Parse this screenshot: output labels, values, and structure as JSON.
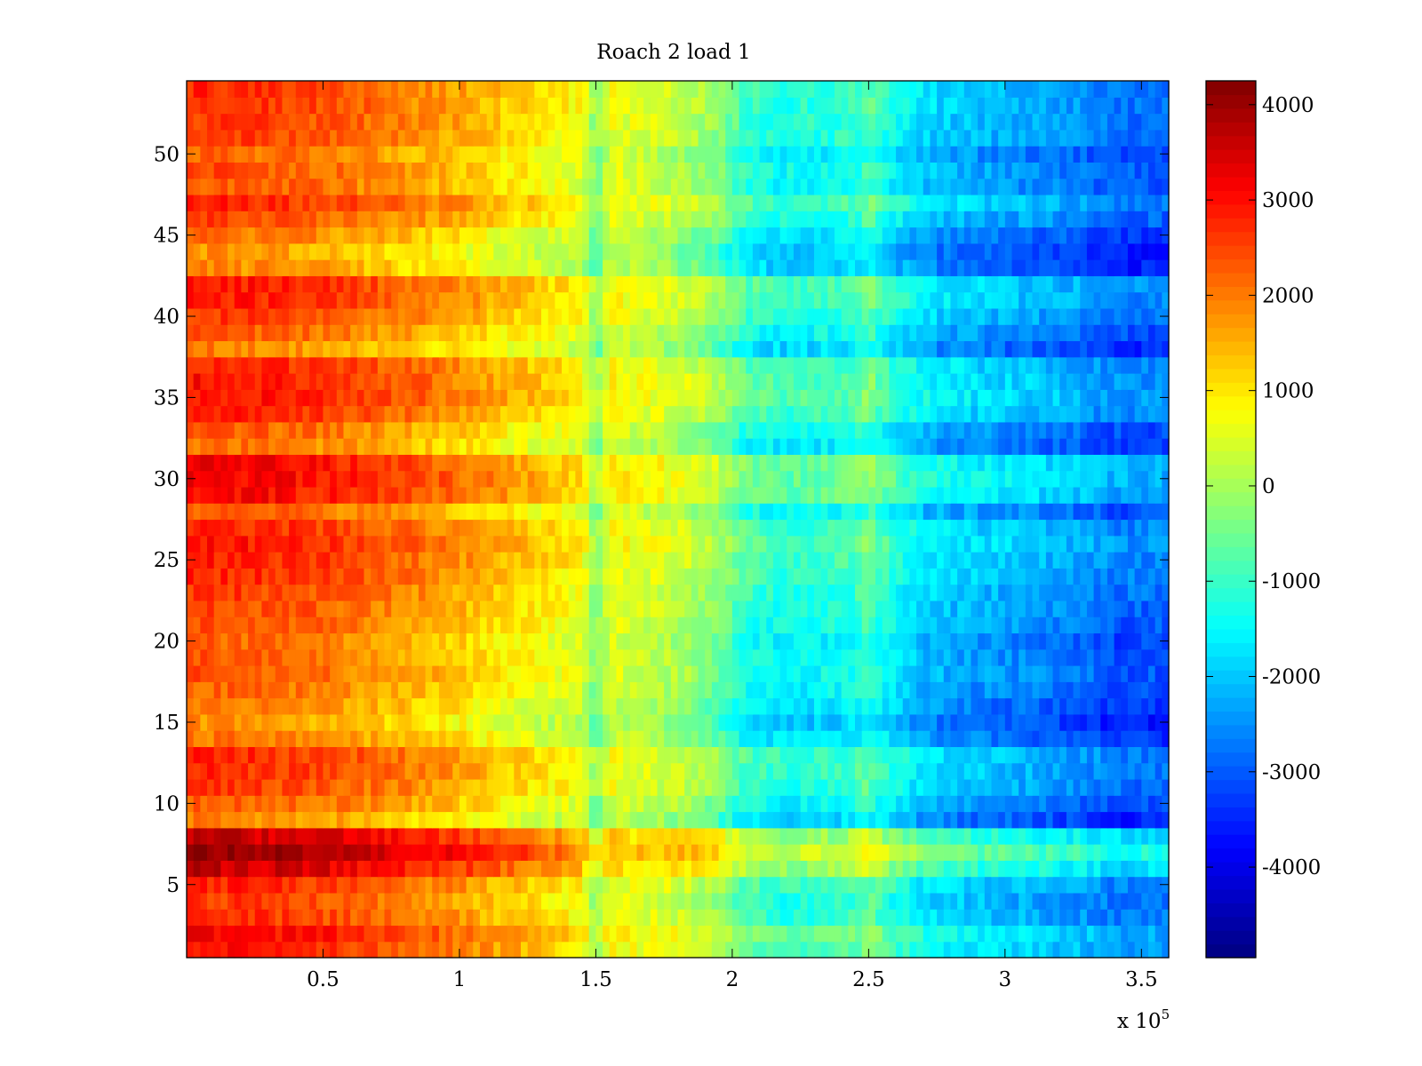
{
  "chart_data": {
    "type": "heatmap",
    "title": "Roach 2 load 1",
    "xlabel": "",
    "ylabel": "",
    "x_multiplier_label": "x 10",
    "x_multiplier_exponent": "5",
    "xlim": [
      0,
      3.6
    ],
    "ylim": [
      0.5,
      54.5
    ],
    "x_ticks": [
      0.5,
      1,
      1.5,
      2,
      2.5,
      3,
      3.5
    ],
    "x_tick_labels": [
      "0.5",
      "1",
      "1.5",
      "2",
      "2.5",
      "3",
      "3.5"
    ],
    "y_ticks": [
      5,
      10,
      15,
      20,
      25,
      30,
      35,
      40,
      45,
      50
    ],
    "y_tick_labels": [
      "5",
      "10",
      "15",
      "20",
      "25",
      "30",
      "35",
      "40",
      "45",
      "50"
    ],
    "rows": 54,
    "colorbar": {
      "colormap": "jet",
      "clim": [
        -4950,
        4250
      ],
      "ticks": [
        4000,
        3000,
        2000,
        1000,
        0,
        -1000,
        -2000,
        -3000,
        -4000
      ],
      "tick_labels": [
        "4000",
        "3000",
        "2000",
        "1000",
        "0",
        "-1000",
        "-2000",
        "-3000",
        "-4000"
      ]
    },
    "x_profile": {
      "x": [
        0,
        0.25,
        0.5,
        0.75,
        1.0,
        1.15,
        1.3,
        1.45,
        1.5,
        1.55,
        1.65,
        1.8,
        1.95,
        2.05,
        2.2,
        2.45,
        2.5,
        2.55,
        2.7,
        2.9,
        3.1,
        3.3,
        3.4,
        3.6
      ],
      "values": [
        2550,
        2450,
        2250,
        1900,
        1500,
        1150,
        900,
        650,
        -400,
        600,
        450,
        200,
        -300,
        -1050,
        -1350,
        -1150,
        -700,
        -1200,
        -1900,
        -2200,
        -2400,
        -2650,
        -2900,
        -2900
      ]
    },
    "row_offsets": [
      {
        "y": 1,
        "offset": 500
      },
      {
        "y": 2,
        "offset": 650
      },
      {
        "y": 3,
        "offset": 200
      },
      {
        "y": 4,
        "offset": 100
      },
      {
        "y": 5,
        "offset": 300
      },
      {
        "y": 6,
        "offset": 1100
      },
      {
        "y": 7,
        "offset": 1600
      },
      {
        "y": 8,
        "offset": 1100
      },
      {
        "y": 9,
        "offset": -600
      },
      {
        "y": 10,
        "offset": -200
      },
      {
        "y": 11,
        "offset": 100
      },
      {
        "y": 12,
        "offset": 200
      },
      {
        "y": 13,
        "offset": 250
      },
      {
        "y": 14,
        "offset": -450
      },
      {
        "y": 15,
        "offset": -700
      },
      {
        "y": 16,
        "offset": -500
      },
      {
        "y": 17,
        "offset": -300
      },
      {
        "y": 18,
        "offset": -150
      },
      {
        "y": 19,
        "offset": -200
      },
      {
        "y": 20,
        "offset": -300
      },
      {
        "y": 21,
        "offset": -100
      },
      {
        "y": 22,
        "offset": 0
      },
      {
        "y": 23,
        "offset": 100
      },
      {
        "y": 24,
        "offset": 250
      },
      {
        "y": 25,
        "offset": 350
      },
      {
        "y": 26,
        "offset": 450
      },
      {
        "y": 27,
        "offset": 300
      },
      {
        "y": 28,
        "offset": -200
      },
      {
        "y": 29,
        "offset": 600
      },
      {
        "y": 30,
        "offset": 700
      },
      {
        "y": 31,
        "offset": 650
      },
      {
        "y": 32,
        "offset": -400
      },
      {
        "y": 33,
        "offset": -200
      },
      {
        "y": 34,
        "offset": 300
      },
      {
        "y": 35,
        "offset": 500
      },
      {
        "y": 36,
        "offset": 450
      },
      {
        "y": 37,
        "offset": 350
      },
      {
        "y": 38,
        "offset": -550
      },
      {
        "y": 39,
        "offset": -200
      },
      {
        "y": 40,
        "offset": 100
      },
      {
        "y": 41,
        "offset": 350
      },
      {
        "y": 42,
        "offset": 400
      },
      {
        "y": 43,
        "offset": -650
      },
      {
        "y": 44,
        "offset": -750
      },
      {
        "y": 45,
        "offset": -450
      },
      {
        "y": 46,
        "offset": 0
      },
      {
        "y": 47,
        "offset": 300
      },
      {
        "y": 48,
        "offset": -150
      },
      {
        "y": 49,
        "offset": -100
      },
      {
        "y": 50,
        "offset": -300
      },
      {
        "y": 51,
        "offset": 50
      },
      {
        "y": 52,
        "offset": 100
      },
      {
        "y": 53,
        "offset": 150
      },
      {
        "y": 54,
        "offset": 200
      }
    ],
    "grid": false
  }
}
